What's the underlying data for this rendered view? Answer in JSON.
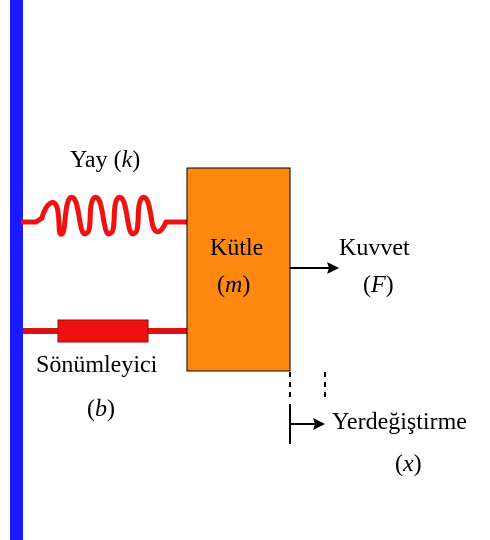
{
  "colors": {
    "wall": "#1a1aff",
    "spring": "#ee1111",
    "damper_body": "#ee1111",
    "damper_rod": "#dd1111",
    "mass_fill": "#ff8811",
    "mass_stroke": "#000000",
    "arrow": "#000000"
  },
  "spring": {
    "label_prefix": "Yay (",
    "symbol": "k",
    "label_suffix": ")"
  },
  "damper": {
    "label": "Sönümleyici",
    "symbol_open": "(",
    "symbol": "b",
    "symbol_close": ")"
  },
  "mass": {
    "label": "Kütle",
    "symbol_open": "(",
    "symbol": "m",
    "symbol_close": ")"
  },
  "force": {
    "label": "Kuvvet",
    "symbol_open": "(",
    "symbol": "F",
    "symbol_close": ")"
  },
  "displacement": {
    "label": "Yerdeğiştirme",
    "symbol_open": "(",
    "symbol": "x",
    "symbol_close": ")"
  }
}
